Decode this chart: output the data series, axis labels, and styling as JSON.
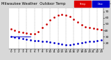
{
  "title": "Milwaukee Weather  Outdoor Temp",
  "bg_color": "#d8d8d8",
  "plot_bg": "#ffffff",
  "grid_color": "#999999",
  "ylim": [
    10,
    75
  ],
  "ytick_vals": [
    20,
    30,
    40,
    50,
    60,
    70
  ],
  "ytick_labels": [
    "20",
    "30",
    "40",
    "50",
    "60",
    "70"
  ],
  "xlim": [
    -0.5,
    23.5
  ],
  "hours": [
    0,
    1,
    2,
    3,
    4,
    5,
    6,
    7,
    8,
    9,
    10,
    11,
    12,
    13,
    14,
    15,
    16,
    17,
    18,
    19,
    20,
    21,
    22,
    23
  ],
  "temp": [
    42,
    40,
    38,
    37,
    36,
    35,
    35,
    38,
    44,
    50,
    56,
    61,
    64,
    65,
    64,
    62,
    58,
    53,
    49,
    46,
    44,
    43,
    42,
    41
  ],
  "dew": [
    30,
    29,
    28,
    27,
    26,
    25,
    24,
    24,
    23,
    22,
    21,
    20,
    19,
    18,
    17,
    17,
    18,
    19,
    20,
    21,
    22,
    23,
    24,
    25
  ],
  "dew_line_x": [
    0,
    5
  ],
  "dew_line_y": [
    30,
    30
  ],
  "temp_color": "#cc0000",
  "dew_color": "#0000cc",
  "title_bar_red": "#dd0000",
  "title_bar_blue": "#0000cc",
  "title_fontsize": 3.8,
  "tick_fontsize": 3.2,
  "grid_hours": [
    2,
    4,
    6,
    8,
    10,
    12,
    14,
    16,
    18,
    20,
    22
  ],
  "xtick_positions": [
    0,
    1,
    2,
    3,
    4,
    5,
    6,
    7,
    8,
    9,
    10,
    11,
    12,
    13,
    14,
    15,
    16,
    17,
    18,
    19,
    20,
    21,
    22,
    23
  ],
  "xtick_labels": [
    "0",
    "1",
    "2",
    "3",
    "4",
    "5",
    "6",
    "7",
    "8",
    "9",
    "10",
    "11",
    "12",
    "13",
    "14",
    "15",
    "16",
    "17",
    "18",
    "19",
    "20",
    "21",
    "22",
    "23"
  ]
}
